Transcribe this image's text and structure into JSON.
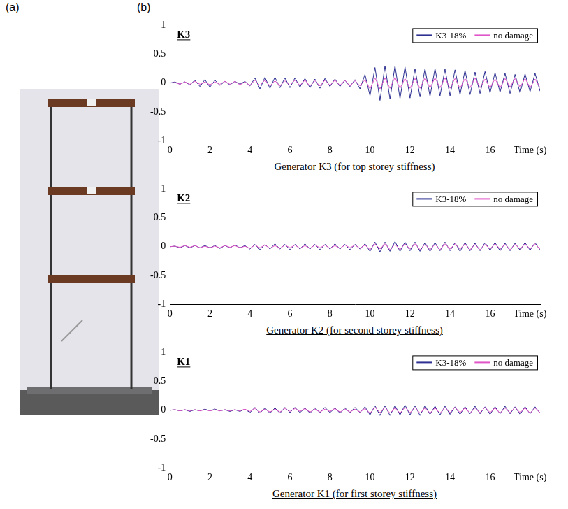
{
  "panel_labels": [
    "(a)",
    "(b)"
  ],
  "chart_data": [
    {
      "type": "line",
      "title": "K3",
      "xlabel": "Generator K3 (for top storey stiffness)",
      "x": [
        0,
        0.25,
        0.5,
        0.75,
        1,
        1.25,
        1.5,
        1.75,
        2,
        2.25,
        2.5,
        2.75,
        3,
        3.25,
        3.5,
        3.75,
        4,
        4.25,
        4.5,
        4.75,
        5,
        5.25,
        5.5,
        5.75,
        6,
        6.25,
        6.5,
        6.75,
        7,
        7.25,
        7.5,
        7.75,
        8,
        8.25,
        8.5,
        8.75,
        9,
        9.25,
        9.5,
        9.75,
        10,
        10.25,
        10.5,
        10.75,
        11,
        11.25,
        11.5,
        11.75,
        12,
        12.25,
        12.5,
        12.75,
        13,
        13.25,
        13.5,
        13.75,
        14,
        14.25,
        14.5,
        14.75,
        15,
        15.25,
        15.5,
        15.75,
        16,
        16.25,
        16.5,
        16.75,
        17,
        17.25,
        17.5,
        17.75,
        18,
        18.25,
        18.5
      ],
      "series": [
        {
          "name": "K3-18%",
          "color": "#2e3192",
          "values": [
            0,
            0.02,
            -0.02,
            0.02,
            -0.03,
            0.05,
            -0.06,
            0.06,
            -0.07,
            0.05,
            -0.04,
            0.03,
            -0.03,
            0.03,
            -0.02,
            0.03,
            -0.05,
            0.09,
            -0.1,
            0.1,
            -0.09,
            0.1,
            -0.08,
            0.09,
            -0.08,
            0.09,
            -0.07,
            0.08,
            -0.08,
            0.07,
            -0.09,
            0.08,
            -0.06,
            0.07,
            -0.06,
            0.05,
            -0.06,
            0.06,
            -0.1,
            0.15,
            -0.22,
            0.27,
            -0.3,
            0.3,
            -0.28,
            0.3,
            -0.27,
            0.28,
            -0.26,
            0.25,
            -0.24,
            0.25,
            -0.23,
            0.25,
            -0.22,
            0.24,
            -0.22,
            0.23,
            -0.2,
            0.22,
            -0.2,
            0.19,
            -0.18,
            0.2,
            -0.17,
            0.18,
            -0.16,
            0.17,
            -0.18,
            0.15,
            -0.17,
            0.16,
            -0.15,
            0.17,
            -0.14
          ]
        },
        {
          "name": "no damage",
          "color": "#e055c8",
          "values": [
            0,
            0.01,
            -0.02,
            0.02,
            -0.02,
            0.03,
            -0.02,
            0.02,
            -0.03,
            0.02,
            -0.02,
            0.03,
            -0.02,
            0.03,
            -0.03,
            0.02,
            -0.04,
            0.05,
            -0.04,
            0.05,
            -0.05,
            0.04,
            -0.05,
            0.04,
            -0.04,
            0.05,
            -0.04,
            0.05,
            -0.05,
            0.04,
            -0.05,
            0.05,
            -0.04,
            0.05,
            -0.04,
            0.05,
            -0.05,
            0.04,
            -0.05,
            0.06,
            -0.1,
            0.09,
            -0.1,
            0.09,
            -0.09,
            0.1,
            -0.09,
            0.08,
            -0.09,
            0.08,
            -0.09,
            0.09,
            -0.08,
            0.09,
            -0.08,
            0.09,
            -0.09,
            0.08,
            -0.09,
            0.08,
            -0.08,
            0.09,
            -0.08,
            0.07,
            -0.08,
            0.07,
            -0.08,
            0.08,
            -0.07,
            0.08,
            -0.07,
            0.08,
            -0.08,
            0.07,
            -0.08
          ]
        }
      ],
      "xlim": [
        0,
        18.5
      ],
      "xticks": [
        0,
        2,
        4,
        6,
        8,
        10,
        12,
        14,
        16,
        {
          "value": 18,
          "label": "Time (s)"
        }
      ],
      "ylim": [
        -1,
        1
      ],
      "yticks": [
        -1,
        -0.5,
        0,
        0.5,
        1
      ],
      "grid": false,
      "legend": "upper right"
    },
    {
      "type": "line",
      "title": "K2",
      "xlabel": "Generator K2 (for second storey stiffness)",
      "x": [
        0,
        0.25,
        0.5,
        0.75,
        1,
        1.25,
        1.5,
        1.75,
        2,
        2.25,
        2.5,
        2.75,
        3,
        3.25,
        3.5,
        3.75,
        4,
        4.25,
        4.5,
        4.75,
        5,
        5.25,
        5.5,
        5.75,
        6,
        6.25,
        6.5,
        6.75,
        7,
        7.25,
        7.5,
        7.75,
        8,
        8.25,
        8.5,
        8.75,
        9,
        9.25,
        9.5,
        9.75,
        10,
        10.25,
        10.5,
        10.75,
        11,
        11.25,
        11.5,
        11.75,
        12,
        12.25,
        12.5,
        12.75,
        13,
        13.25,
        13.5,
        13.75,
        14,
        14.25,
        14.5,
        14.75,
        15,
        15.25,
        15.5,
        15.75,
        16,
        16.25,
        16.5,
        16.75,
        17,
        17.25,
        17.5,
        17.75,
        18,
        18.25,
        18.5
      ],
      "series": [
        {
          "name": "K3-18%",
          "color": "#2e3192",
          "values": [
            0,
            0.01,
            -0.02,
            0.02,
            -0.02,
            0.02,
            -0.02,
            0.02,
            -0.02,
            0.02,
            -0.03,
            0.02,
            -0.02,
            0.03,
            -0.02,
            0.02,
            -0.04,
            0.04,
            -0.05,
            0.04,
            -0.04,
            0.05,
            -0.04,
            0.04,
            -0.05,
            0.04,
            -0.04,
            0.05,
            -0.04,
            0.04,
            -0.05,
            0.04,
            -0.04,
            0.05,
            -0.04,
            0.04,
            -0.05,
            0.04,
            -0.04,
            0.05,
            -0.08,
            0.08,
            -0.09,
            0.08,
            -0.08,
            0.09,
            -0.08,
            0.08,
            -0.07,
            0.08,
            -0.08,
            0.07,
            -0.08,
            0.07,
            -0.07,
            0.08,
            -0.07,
            0.07,
            -0.08,
            0.07,
            -0.07,
            0.06,
            -0.07,
            0.07,
            -0.06,
            0.07,
            -0.07,
            0.06,
            -0.07,
            0.06,
            -0.06,
            0.07,
            -0.06,
            0.07,
            -0.06
          ]
        },
        {
          "name": "no damage",
          "color": "#e055c8",
          "values": [
            0,
            0.01,
            -0.01,
            0.02,
            -0.01,
            0.02,
            -0.02,
            0.01,
            -0.02,
            0.01,
            -0.02,
            0.02,
            -0.01,
            0.02,
            -0.02,
            0.01,
            -0.03,
            0.03,
            -0.02,
            0.03,
            -0.03,
            0.02,
            -0.03,
            0.03,
            -0.02,
            0.03,
            -0.03,
            0.02,
            -0.03,
            0.03,
            -0.02,
            0.03,
            -0.03,
            0.02,
            -0.03,
            0.03,
            -0.02,
            0.03,
            -0.03,
            0.03,
            -0.05,
            0.05,
            -0.04,
            0.05,
            -0.05,
            0.04,
            -0.05,
            0.05,
            -0.04,
            0.05,
            -0.05,
            0.04,
            -0.05,
            0.04,
            -0.05,
            0.05,
            -0.04,
            0.05,
            -0.04,
            0.05,
            -0.05,
            0.04,
            -0.05,
            0.04,
            -0.04,
            0.05,
            -0.04,
            0.04,
            -0.05,
            0.04,
            -0.04,
            0.05,
            -0.04,
            0.05,
            -0.04
          ]
        }
      ],
      "xlim": [
        0,
        18.5
      ],
      "xticks": [
        0,
        2,
        4,
        6,
        8,
        10,
        12,
        14,
        16,
        {
          "value": 18,
          "label": "Time (s)"
        }
      ],
      "ylim": [
        -1,
        1
      ],
      "yticks": [
        -1,
        -0.5,
        0,
        0.5,
        1
      ],
      "grid": false,
      "legend": "upper right"
    },
    {
      "type": "line",
      "title": "K1",
      "xlabel": "Generator K1 (for first storey stiffness)",
      "x": [
        0,
        0.25,
        0.5,
        0.75,
        1,
        1.25,
        1.5,
        1.75,
        2,
        2.25,
        2.5,
        2.75,
        3,
        3.25,
        3.5,
        3.75,
        4,
        4.25,
        4.5,
        4.75,
        5,
        5.25,
        5.5,
        5.75,
        6,
        6.25,
        6.5,
        6.75,
        7,
        7.25,
        7.5,
        7.75,
        8,
        8.25,
        8.5,
        8.75,
        9,
        9.25,
        9.5,
        9.75,
        10,
        10.25,
        10.5,
        10.75,
        11,
        11.25,
        11.5,
        11.75,
        12,
        12.25,
        12.5,
        12.75,
        13,
        13.25,
        13.5,
        13.75,
        14,
        14.25,
        14.5,
        14.75,
        15,
        15.25,
        15.5,
        15.75,
        16,
        16.25,
        16.5,
        16.75,
        17,
        17.25,
        17.5,
        17.75,
        18,
        18.25,
        18.5
      ],
      "series": [
        {
          "name": "K3-18%",
          "color": "#2e3192",
          "values": [
            0,
            0.01,
            -0.01,
            0.01,
            -0.02,
            0.01,
            -0.01,
            0.02,
            -0.01,
            0.02,
            -0.01,
            0.01,
            -0.02,
            0.01,
            -0.02,
            0.02,
            -0.04,
            0.05,
            -0.05,
            0.04,
            -0.05,
            0.04,
            -0.05,
            0.05,
            -0.04,
            0.05,
            -0.04,
            0.04,
            -0.05,
            0.04,
            -0.04,
            0.05,
            -0.04,
            0.04,
            -0.05,
            0.04,
            -0.04,
            0.05,
            -0.04,
            0.06,
            -0.08,
            0.08,
            -0.09,
            0.08,
            -0.09,
            0.08,
            -0.08,
            0.09,
            -0.08,
            0.08,
            -0.09,
            0.08,
            -0.07,
            0.07,
            -0.08,
            0.07,
            -0.07,
            0.06,
            -0.07,
            0.06,
            -0.06,
            0.07,
            -0.06,
            0.06,
            -0.07,
            0.06,
            -0.06,
            0.07,
            -0.06,
            0.06,
            -0.07,
            0.06,
            -0.06,
            0.06,
            -0.05
          ]
        },
        {
          "name": "no damage",
          "color": "#e055c8",
          "values": [
            0,
            0.01,
            -0.01,
            0.01,
            -0.01,
            0.01,
            -0.01,
            0.01,
            -0.01,
            0.01,
            -0.01,
            0.01,
            -0.01,
            0.01,
            -0.01,
            0.02,
            -0.02,
            0.03,
            -0.03,
            0.02,
            -0.03,
            0.02,
            -0.03,
            0.03,
            -0.02,
            0.03,
            -0.02,
            0.03,
            -0.03,
            0.02,
            -0.03,
            0.02,
            -0.02,
            0.03,
            -0.03,
            0.02,
            -0.03,
            0.02,
            -0.03,
            0.03,
            -0.05,
            0.05,
            -0.04,
            0.05,
            -0.05,
            0.04,
            -0.05,
            0.05,
            -0.04,
            0.05,
            -0.05,
            0.04,
            -0.05,
            0.04,
            -0.05,
            0.05,
            -0.04,
            0.05,
            -0.04,
            0.04,
            -0.05,
            0.04,
            -0.04,
            0.05,
            -0.04,
            0.04,
            -0.05,
            0.04,
            -0.04,
            0.05,
            -0.04,
            0.04,
            -0.05,
            0.04,
            -0.04
          ]
        }
      ],
      "xlim": [
        0,
        18.5
      ],
      "xticks": [
        0,
        2,
        4,
        6,
        8,
        10,
        12,
        14,
        16,
        {
          "value": 18,
          "label": "Time (s)"
        }
      ],
      "ylim": [
        -1,
        1
      ],
      "yticks": [
        -1,
        -0.5,
        0,
        0.5,
        1
      ],
      "grid": false,
      "legend": "upper right"
    }
  ]
}
